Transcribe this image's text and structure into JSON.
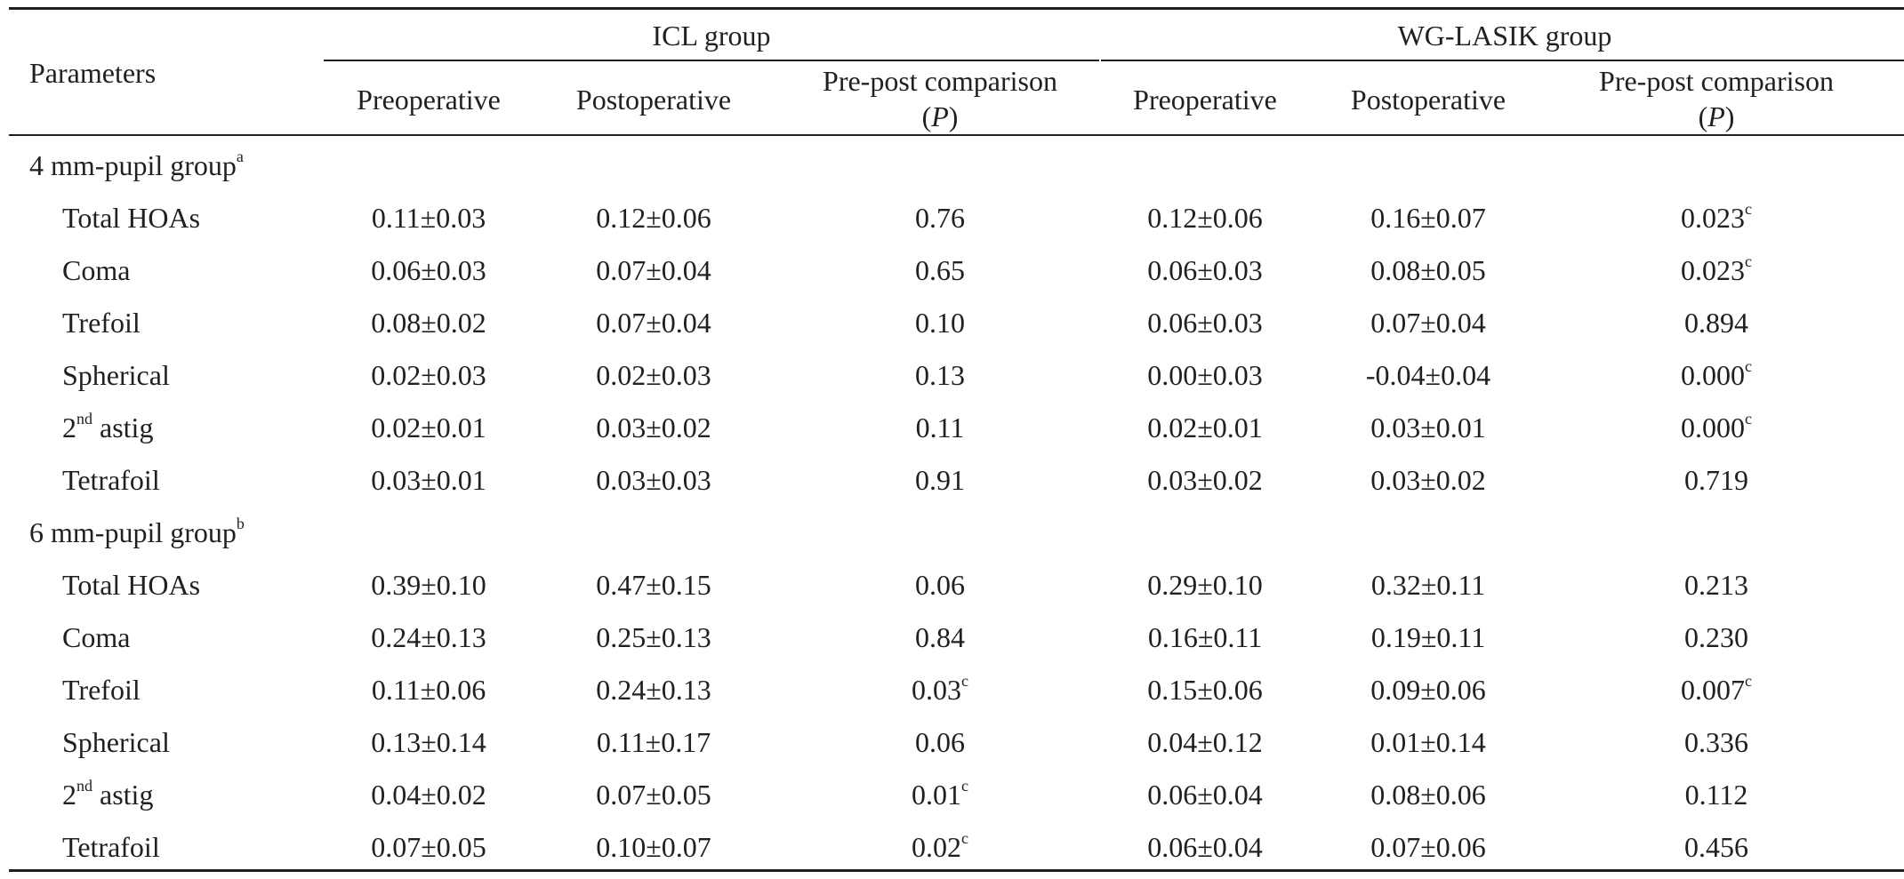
{
  "header": {
    "parameters": "Parameters",
    "icl_group": "ICL group",
    "wg_group": "WG-LASIK group",
    "preoperative": "Preoperative",
    "postoperative": "Postoperative",
    "comparison_line1": "Pre-post comparison",
    "comparison_p": "P"
  },
  "sections": [
    {
      "label": "4 mm-pupil group",
      "label_sup": "a",
      "rows": [
        {
          "name": "Total HOAs",
          "name_sup": "",
          "name_rest": "",
          "icl_pre": "0.11±0.03",
          "icl_post": "0.12±0.06",
          "icl_p": "0.76",
          "icl_p_sup": "",
          "wg_pre": "0.12±0.06",
          "wg_post": "0.16±0.07",
          "wg_p": "0.023",
          "wg_p_sup": "c"
        },
        {
          "name": "Coma",
          "name_sup": "",
          "name_rest": "",
          "icl_pre": "0.06±0.03",
          "icl_post": "0.07±0.04",
          "icl_p": "0.65",
          "icl_p_sup": "",
          "wg_pre": "0.06±0.03",
          "wg_post": "0.08±0.05",
          "wg_p": "0.023",
          "wg_p_sup": "c"
        },
        {
          "name": "Trefoil",
          "name_sup": "",
          "name_rest": "",
          "icl_pre": "0.08±0.02",
          "icl_post": "0.07±0.04",
          "icl_p": "0.10",
          "icl_p_sup": "",
          "wg_pre": "0.06±0.03",
          "wg_post": "0.07±0.04",
          "wg_p": "0.894",
          "wg_p_sup": ""
        },
        {
          "name": "Spherical",
          "name_sup": "",
          "name_rest": "",
          "icl_pre": "0.02±0.03",
          "icl_post": "0.02±0.03",
          "icl_p": "0.13",
          "icl_p_sup": "",
          "wg_pre": "0.00±0.03",
          "wg_post": "-0.04±0.04",
          "wg_p": "0.000",
          "wg_p_sup": "c"
        },
        {
          "name": "2",
          "name_sup": "nd",
          "name_rest": " astig",
          "icl_pre": "0.02±0.01",
          "icl_post": "0.03±0.02",
          "icl_p": "0.11",
          "icl_p_sup": "",
          "wg_pre": "0.02±0.01",
          "wg_post": "0.03±0.01",
          "wg_p": "0.000",
          "wg_p_sup": "c"
        },
        {
          "name": "Tetrafoil",
          "name_sup": "",
          "name_rest": "",
          "icl_pre": "0.03±0.01",
          "icl_post": "0.03±0.03",
          "icl_p": "0.91",
          "icl_p_sup": "",
          "wg_pre": "0.03±0.02",
          "wg_post": "0.03±0.02",
          "wg_p": "0.719",
          "wg_p_sup": ""
        }
      ]
    },
    {
      "label": "6 mm-pupil group",
      "label_sup": "b",
      "rows": [
        {
          "name": "Total HOAs",
          "name_sup": "",
          "name_rest": "",
          "icl_pre": "0.39±0.10",
          "icl_post": "0.47±0.15",
          "icl_p": "0.06",
          "icl_p_sup": "",
          "wg_pre": "0.29±0.10",
          "wg_post": "0.32±0.11",
          "wg_p": "0.213",
          "wg_p_sup": ""
        },
        {
          "name": "Coma",
          "name_sup": "",
          "name_rest": "",
          "icl_pre": "0.24±0.13",
          "icl_post": "0.25±0.13",
          "icl_p": "0.84",
          "icl_p_sup": "",
          "wg_pre": "0.16±0.11",
          "wg_post": "0.19±0.11",
          "wg_p": "0.230",
          "wg_p_sup": ""
        },
        {
          "name": "Trefoil",
          "name_sup": "",
          "name_rest": "",
          "icl_pre": "0.11±0.06",
          "icl_post": "0.24±0.13",
          "icl_p": "0.03",
          "icl_p_sup": "c",
          "wg_pre": "0.15±0.06",
          "wg_post": "0.09±0.06",
          "wg_p": "0.007",
          "wg_p_sup": "c"
        },
        {
          "name": "Spherical",
          "name_sup": "",
          "name_rest": "",
          "icl_pre": "0.13±0.14",
          "icl_post": "0.11±0.17",
          "icl_p": "0.06",
          "icl_p_sup": "",
          "wg_pre": "0.04±0.12",
          "wg_post": "0.01±0.14",
          "wg_p": "0.336",
          "wg_p_sup": ""
        },
        {
          "name": "2",
          "name_sup": "nd",
          "name_rest": " astig",
          "icl_pre": "0.04±0.02",
          "icl_post": "0.07±0.05",
          "icl_p": "0.01",
          "icl_p_sup": "c",
          "wg_pre": "0.06±0.04",
          "wg_post": "0.08±0.06",
          "wg_p": "0.112",
          "wg_p_sup": ""
        },
        {
          "name": "Tetrafoil",
          "name_sup": "",
          "name_rest": "",
          "icl_pre": "0.07±0.05",
          "icl_post": "0.10±0.07",
          "icl_p": "0.02",
          "icl_p_sup": "c",
          "wg_pre": "0.06±0.04",
          "wg_post": "0.07±0.06",
          "wg_p": "0.456",
          "wg_p_sup": ""
        }
      ]
    }
  ]
}
